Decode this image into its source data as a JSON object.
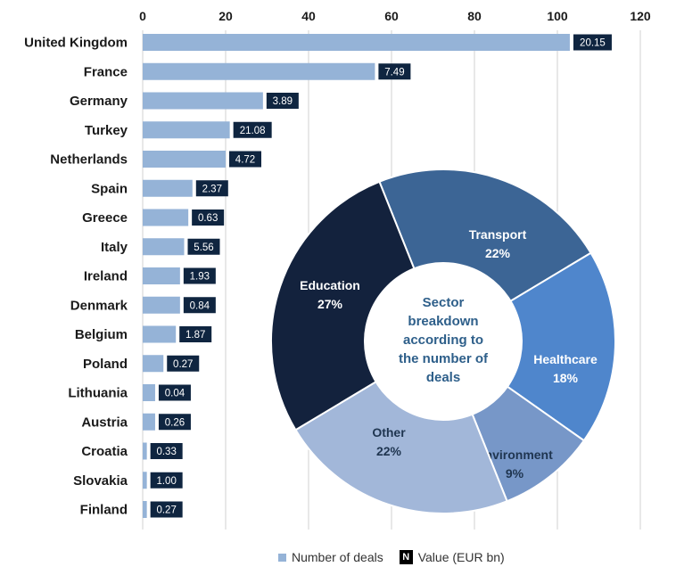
{
  "chart_data": {
    "type": "bar",
    "orientation": "horizontal",
    "categories": [
      "United Kingdom",
      "France",
      "Germany",
      "Turkey",
      "Netherlands",
      "Spain",
      "Greece",
      "Italy",
      "Ireland",
      "Denmark",
      "Belgium",
      "Poland",
      "Lithuania",
      "Austria",
      "Croatia",
      "Slovakia",
      "Finland"
    ],
    "series": [
      {
        "name": "Number of deals",
        "values": [
          103,
          56,
          29,
          21,
          20,
          12,
          11,
          10,
          9,
          9,
          8,
          5,
          3,
          3,
          1,
          1,
          1
        ],
        "color": "#95b3d7"
      },
      {
        "name": "Value (EUR bn)",
        "values": [
          20.15,
          7.49,
          3.89,
          21.08,
          4.72,
          2.37,
          0.63,
          5.56,
          1.93,
          0.84,
          1.87,
          0.27,
          0.04,
          0.26,
          0.33,
          1.0,
          0.27
        ],
        "color": "#0f2540",
        "labels": [
          "20.15",
          "7.49",
          "3.89",
          "21.08",
          "4.72",
          "2.37",
          "0.63",
          "5.56",
          "1.93",
          "0.84",
          "1.87",
          "0.27",
          "0.04",
          "0.26",
          "0.33",
          "1.00",
          "0.27"
        ]
      }
    ],
    "xlim": [
      0,
      120
    ],
    "xticks": [
      0,
      20,
      40,
      60,
      80,
      100,
      120
    ],
    "xaxis_position": "top",
    "grid": true,
    "legend_position": "bottom",
    "inset": {
      "type": "pie",
      "style": "donut",
      "center_label": [
        "Sector",
        "breakdown",
        "according to",
        "the number of",
        "deals"
      ],
      "slices": [
        {
          "name": "Transport",
          "value": 22,
          "label": "22%",
          "color": "#3c6595"
        },
        {
          "name": "Healthcare",
          "value": 18,
          "label": "18%",
          "color": "#4f86cc"
        },
        {
          "name": "Environment",
          "value": 9,
          "label": "9%",
          "color": "#7797c8"
        },
        {
          "name": "Other",
          "value": 22,
          "label": "22%",
          "color": "#a2b7d9"
        },
        {
          "name": "Education",
          "value": 27,
          "label": "27%",
          "color": "#13223d"
        }
      ]
    }
  },
  "legend": {
    "deals_label": "Number of deals",
    "value_marker": "N",
    "value_label": "Value (EUR bn)"
  }
}
